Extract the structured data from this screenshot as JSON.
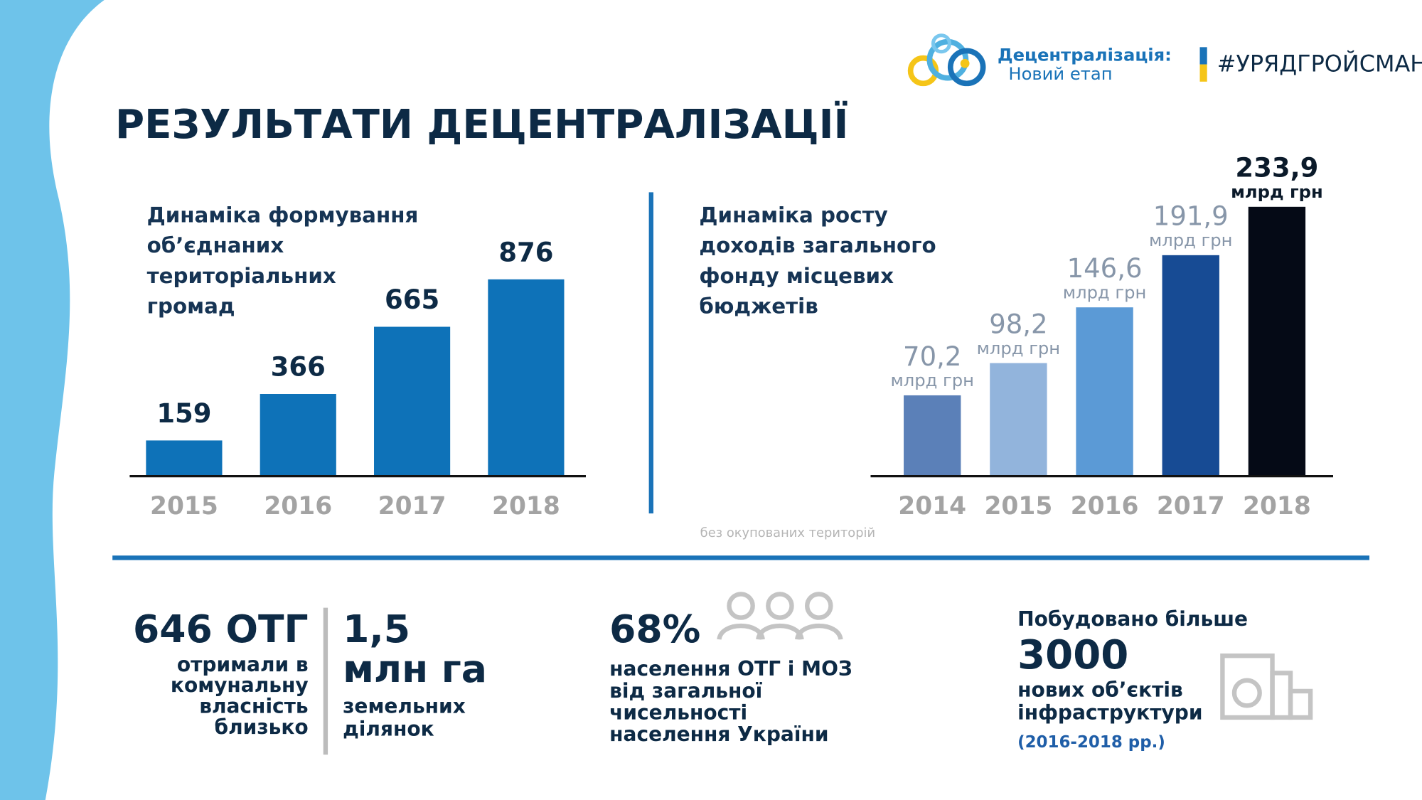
{
  "header": {
    "title": "РЕЗУЛЬТАТИ ДЕЦЕНТРАЛІЗАЦІЇ",
    "logo_title": "Децентралізація:",
    "logo_subtitle": "Новий етап",
    "hashtag": "#УРЯДГРОЙСМАНА"
  },
  "chart_data": [
    {
      "type": "bar",
      "title": [
        "Динаміка формування",
        "об’єднаних",
        "територіальних",
        "громад"
      ],
      "categories": [
        "2015",
        "2016",
        "2017",
        "2018"
      ],
      "values": [
        159,
        366,
        665,
        876
      ],
      "color": "#0e72b8"
    },
    {
      "type": "bar",
      "title": [
        "Динаміка росту",
        "доходів загального",
        "фонду місцевих",
        "бюджетів"
      ],
      "categories": [
        "2014",
        "2015",
        "2016",
        "2017",
        "2018"
      ],
      "values": [
        70.2,
        98.2,
        146.6,
        191.9,
        233.9
      ],
      "value_labels": [
        "70,2",
        "98,2",
        "146,6",
        "191,9",
        "233,9"
      ],
      "value_unit": "млрд грн",
      "colors": [
        "#5b80b8",
        "#92b4dc",
        "#5b9ad6",
        "#174b94",
        "#050a16"
      ],
      "note": "без окупованих територій"
    }
  ],
  "stats": {
    "communities": {
      "headline": "646 ОТГ",
      "lines": [
        "отримали в",
        "комунальну",
        "власність",
        "близько"
      ]
    },
    "land": {
      "headline": [
        "1,5",
        "млн га"
      ],
      "lines": [
        "земельних",
        "ділянок"
      ]
    },
    "population": {
      "headline": "68%",
      "lines": [
        "населення ОТГ і МОЗ",
        "від загальної",
        "чисельності",
        "населення України"
      ]
    },
    "infrastructure": {
      "intro": "Побудовано більше",
      "headline": "3000",
      "lines": [
        "нових об’єктів",
        "інфраструктури"
      ],
      "period": "(2016-2018 рр.)"
    }
  }
}
